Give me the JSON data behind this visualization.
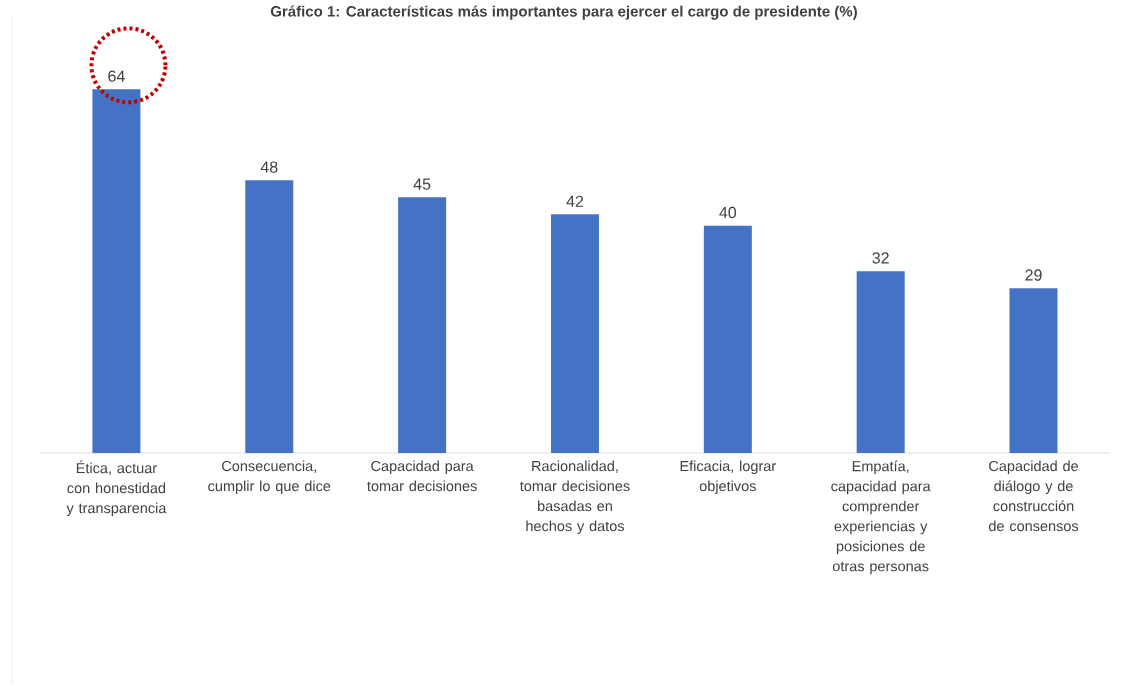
{
  "chart_data": {
    "type": "bar",
    "title": "Gráfico 1: Características más importantes para ejercer el cargo de presidente (%)",
    "categories": [
      "Ética, actuar con honestidad y transparencia",
      "Consecuencia, cumplir lo que dice",
      "Capacidad para tomar decisiones",
      "Racionalidad, tomar decisiones basadas en hechos y datos",
      "Eficacia, lograr objetivos",
      "Empatía, capacidad para comprender experiencias y posiciones de otras personas",
      "Capacidad de diálogo y de construcción de consensos"
    ],
    "values": [
      64,
      48,
      45,
      42,
      40,
      32,
      29
    ],
    "color": "#4472c4",
    "data_labels": true
  }
}
